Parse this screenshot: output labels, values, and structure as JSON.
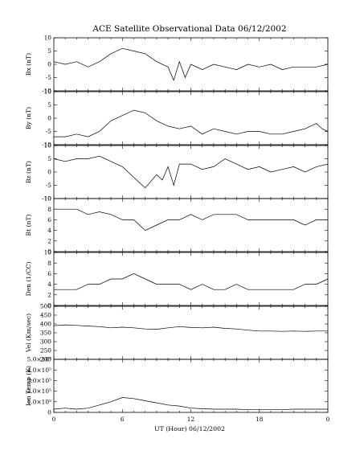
{
  "chart_data": {
    "type": "line",
    "title": "ACE Satellite Observational Data   06/12/2002",
    "xlabel": "UT (Hour)   06/12/2002",
    "x_ticks": [
      "0",
      "6",
      "12",
      "18",
      "0"
    ],
    "xlim": [
      0,
      24
    ],
    "panels": [
      {
        "ylabel": "Bx (nT)",
        "ylim": [
          -10,
          10
        ],
        "yticks": [
          "10",
          "5",
          "0",
          "-5",
          "-10"
        ],
        "series": [
          {
            "x": [
              0,
              1,
              2,
              3,
              4,
              5,
              6,
              7,
              8,
              9,
              10,
              10.5,
              11,
              11.5,
              12,
              13,
              14,
              15,
              16,
              17,
              18,
              19,
              20,
              21,
              22,
              23,
              24
            ],
            "y": [
              1,
              0,
              1,
              -1,
              1,
              4,
              6,
              5,
              4,
              1,
              -1,
              -6,
              1,
              -5,
              0,
              -2,
              0,
              -1,
              -2,
              0,
              -1,
              0,
              -2,
              -1,
              -1,
              -1,
              0
            ]
          }
        ]
      },
      {
        "ylabel": "By (nT)",
        "ylim": [
          -10,
          10
        ],
        "yticks": [
          "10",
          "5",
          "0",
          "-5",
          "-10"
        ],
        "series": [
          {
            "x": [
              0,
              1,
              2,
              3,
              4,
              5,
              6,
              7,
              8,
              9,
              10,
              11,
              12,
              13,
              14,
              15,
              16,
              17,
              18,
              19,
              20,
              21,
              22,
              23,
              23.5,
              24
            ],
            "y": [
              -7,
              -7,
              -6,
              -7,
              -5,
              -1,
              1,
              3,
              2,
              -1,
              -3,
              -4,
              -3,
              -6,
              -4,
              -5,
              -6,
              -5,
              -5,
              -6,
              -6,
              -5,
              -4,
              -2,
              -4,
              -5
            ]
          }
        ]
      },
      {
        "ylabel": "Bz (nT)",
        "ylim": [
          -10,
          10
        ],
        "yticks": [
          "10",
          "5",
          "0",
          "-5",
          "-10"
        ],
        "series": [
          {
            "x": [
              0,
              1,
              2,
              3,
              4,
              5,
              6,
              7,
              7.5,
              8,
              9,
              9.5,
              10,
              10.5,
              11,
              12,
              13,
              14,
              15,
              16,
              17,
              18,
              19,
              20,
              21,
              22,
              23,
              24
            ],
            "y": [
              5,
              4,
              5,
              5,
              6,
              4,
              2,
              -2,
              -4,
              -6,
              -1,
              -3,
              2,
              -5,
              3,
              3,
              1,
              2,
              5,
              3,
              1,
              2,
              0,
              1,
              2,
              0,
              2,
              3
            ]
          }
        ]
      },
      {
        "ylabel": "Bt (nT)",
        "ylim": [
          0,
          10
        ],
        "yticks": [
          "10",
          "8",
          "6",
          "4",
          "2",
          "0"
        ],
        "series": [
          {
            "x": [
              0,
              1,
              2,
              3,
              4,
              5,
              6,
              7,
              8,
              9,
              10,
              11,
              12,
              13,
              14,
              15,
              16,
              17,
              18,
              19,
              20,
              21,
              22,
              23,
              24
            ],
            "y": [
              8,
              8,
              8,
              7,
              7.5,
              7,
              6,
              6,
              4,
              5,
              6,
              6,
              7,
              6,
              7,
              7,
              7,
              6,
              6,
              6,
              6,
              6,
              5,
              6,
              6
            ]
          }
        ]
      },
      {
        "ylabel": "Den (1/CC)",
        "ylim": [
          0,
          10
        ],
        "yticks": [
          "10",
          "8",
          "6",
          "4",
          "2",
          "0"
        ],
        "series": [
          {
            "x": [
              0,
              1,
              2,
              3,
              4,
              5,
              6,
              7,
              8,
              9,
              10,
              11,
              12,
              13,
              14,
              15,
              16,
              17,
              18,
              19,
              20,
              21,
              22,
              23,
              24
            ],
            "y": [
              3,
              3,
              3,
              4,
              4,
              5,
              5,
              6,
              5,
              4,
              4,
              4,
              3,
              4,
              3,
              3,
              4,
              3,
              3,
              3,
              3,
              3,
              4,
              4,
              5
            ]
          }
        ]
      },
      {
        "ylabel": "Vel (Km/sec)",
        "ylim": [
          200,
          500
        ],
        "yticks": [
          "500",
          "450",
          "400",
          "350",
          "300",
          "250",
          "200"
        ],
        "series": [
          {
            "x": [
              0,
              1,
              2,
              3,
              4,
              5,
              6,
              7,
              8,
              9,
              10,
              11,
              12,
              13,
              14,
              15,
              16,
              17,
              18,
              19,
              20,
              21,
              22,
              23,
              24
            ],
            "y": [
              390,
              395,
              392,
              388,
              385,
              378,
              382,
              378,
              372,
              370,
              378,
              385,
              380,
              378,
              382,
              375,
              372,
              365,
              360,
              360,
              358,
              360,
              358,
              360,
              360
            ]
          }
        ]
      },
      {
        "ylabel": "Ion Temp (K)",
        "ylim": [
          0,
          500000
        ],
        "yticks": [
          "5.0×10⁵",
          "4.0×10⁵",
          "3.0×10⁵",
          "2.0×10⁵",
          "1.0×10⁵",
          "0"
        ],
        "series": [
          {
            "x": [
              0,
              1,
              2,
              3,
              4,
              5,
              6,
              7,
              8,
              9,
              10,
              11,
              12,
              13,
              14,
              15,
              16,
              17,
              18,
              19,
              20,
              21,
              22,
              23,
              24
            ],
            "y": [
              30000,
              40000,
              30000,
              40000,
              70000,
              100000,
              140000,
              130000,
              110000,
              90000,
              70000,
              60000,
              40000,
              35000,
              30000,
              30000,
              30000,
              25000,
              25000,
              25000,
              25000,
              30000,
              30000,
              30000,
              30000
            ]
          }
        ]
      }
    ]
  }
}
